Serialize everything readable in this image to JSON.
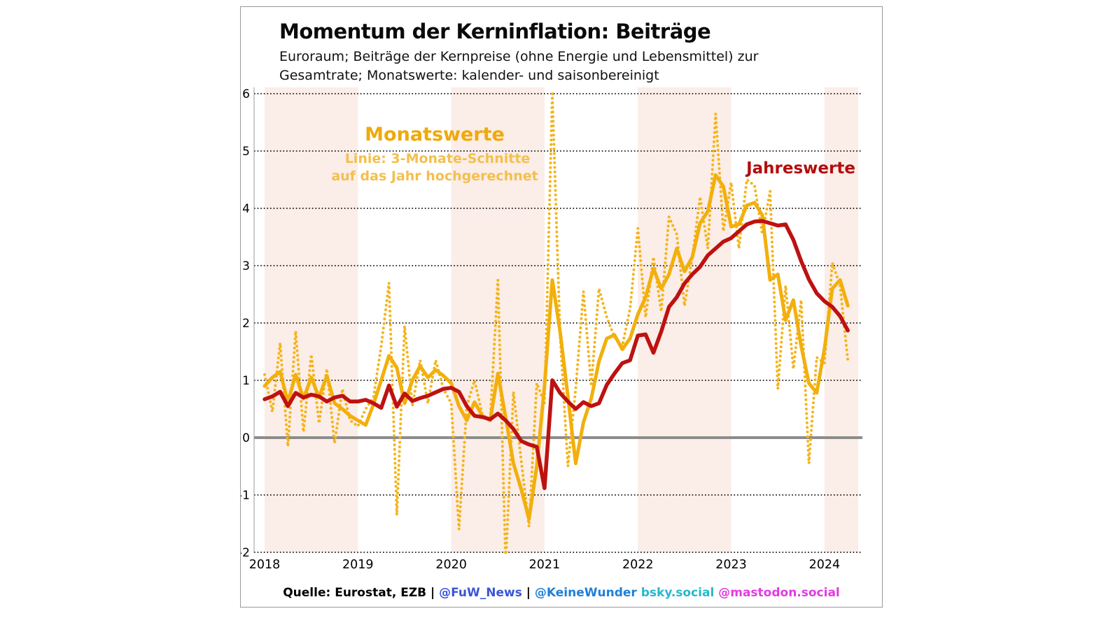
{
  "figure": {
    "title": "Momentum der Kerninflation: Beiträge",
    "subtitle_line1": "Euroraum; Beiträge der Kernpreise (ohne Energie und Lebensmittel) zur",
    "subtitle_line2": "Gesamtrate; Monatswerte: kalender- und saisonbereinigt"
  },
  "annotations": {
    "monthly_label": "Monatswerte",
    "monthly_sub_line1": "Linie: 3-Monate-Schnitte",
    "monthly_sub_line2": "auf das Jahr hochgerechnet",
    "annual_label": "Jahreswerte"
  },
  "footer": {
    "source": "Quelle: Eurostat, EZB",
    "sep1": " | ",
    "fuw": "@FuW_News",
    "sep2": " | ",
    "keinewunder": "@KeineWunder",
    "bsky": " bsky.social",
    "mastodon": " @mastodon.social"
  },
  "colors": {
    "amber": "#F2AF0D",
    "amber_dotted": "#F4B41A",
    "dark_red": "#BE1111",
    "band_pink": "#FBEDE7",
    "grid": "#1a1a1a",
    "zero_line": "#8c8c8c",
    "spine": "#999999",
    "fuw_blue": "#3B55D7",
    "keinewunder_blue": "#1E7FD8",
    "bsky_teal": "#25B8CC",
    "mastodon_magenta": "#E23BE2"
  },
  "chart_data": {
    "type": "line",
    "title": "Momentum der Kerninflation: Beiträge",
    "x_start": "2018-01",
    "x_end": "2024-04",
    "x_frequency": "monthly",
    "n_points": 76,
    "x_tick_labels": [
      "2018",
      "2019",
      "2020",
      "2021",
      "2022",
      "2023",
      "2024"
    ],
    "y_ticks": [
      6,
      5,
      4,
      3,
      2,
      1,
      0,
      -1,
      -2
    ],
    "ylim": [
      -2,
      6
    ],
    "grid": "horizontal dotted",
    "shaded_year_bands": [
      2018,
      2020,
      2022,
      2024
    ],
    "series": [
      {
        "name": "Monatswerte (annualisiert)",
        "style": "dotted",
        "color": "#F4B41A",
        "values": [
          1.1,
          0.45,
          1.65,
          -0.15,
          1.86,
          0.1,
          1.45,
          0.25,
          1.2,
          -0.1,
          0.85,
          0.3,
          0.2,
          0.5,
          0.7,
          1.6,
          2.7,
          -1.35,
          1.95,
          0.55,
          1.35,
          0.6,
          1.35,
          0.85,
          0.6,
          -1.6,
          0.55,
          1.0,
          0.4,
          0.3,
          2.75,
          -2.2,
          0.8,
          -0.4,
          -1.55,
          0.95,
          0.6,
          6.0,
          1.8,
          -0.5,
          0.85,
          2.55,
          0.9,
          2.6,
          2.1,
          1.75,
          1.6,
          2.25,
          3.65,
          2.1,
          3.15,
          2.2,
          3.85,
          3.55,
          2.3,
          3.15,
          4.2,
          3.3,
          5.65,
          3.6,
          4.45,
          3.3,
          4.5,
          4.4,
          3.55,
          4.3,
          0.85,
          2.65,
          1.2,
          2.4,
          -0.45,
          1.4,
          1.3,
          3.05,
          2.65,
          1.35
        ]
      },
      {
        "name": "3-Monate-Schnitte auf das Jahr hochgerechnet",
        "style": "solid",
        "color": "#F2AF0D",
        "values": [
          0.9,
          1.05,
          1.15,
          0.62,
          1.1,
          0.68,
          1.05,
          0.7,
          1.08,
          0.6,
          0.5,
          0.38,
          0.3,
          0.22,
          0.58,
          1.0,
          1.43,
          1.22,
          0.6,
          1.0,
          1.25,
          1.05,
          1.18,
          1.08,
          0.95,
          0.55,
          0.3,
          0.62,
          0.38,
          0.3,
          1.12,
          0.35,
          -0.45,
          -0.9,
          -1.42,
          -0.5,
          0.9,
          2.75,
          1.85,
          0.72,
          -0.45,
          0.27,
          0.68,
          1.33,
          1.73,
          1.79,
          1.54,
          1.73,
          2.15,
          2.45,
          2.95,
          2.6,
          2.85,
          3.3,
          2.9,
          3.15,
          3.74,
          3.95,
          4.58,
          4.38,
          3.68,
          3.72,
          4.05,
          4.1,
          3.88,
          2.75,
          2.85,
          2.05,
          2.4,
          1.6,
          0.95,
          0.78,
          1.55,
          2.6,
          2.75,
          2.3
        ]
      },
      {
        "name": "Jahreswerte",
        "style": "solid",
        "color": "#BE1111",
        "values": [
          0.67,
          0.72,
          0.8,
          0.55,
          0.78,
          0.7,
          0.75,
          0.72,
          0.63,
          0.7,
          0.73,
          0.63,
          0.63,
          0.66,
          0.6,
          0.52,
          0.91,
          0.54,
          0.77,
          0.64,
          0.69,
          0.73,
          0.79,
          0.85,
          0.87,
          0.8,
          0.55,
          0.38,
          0.36,
          0.32,
          0.42,
          0.3,
          0.15,
          -0.06,
          -0.12,
          -0.16,
          -0.88,
          1.0,
          0.78,
          0.63,
          0.5,
          0.62,
          0.55,
          0.6,
          0.92,
          1.12,
          1.3,
          1.35,
          1.78,
          1.8,
          1.48,
          1.85,
          2.28,
          2.45,
          2.69,
          2.85,
          2.98,
          3.18,
          3.3,
          3.42,
          3.48,
          3.6,
          3.72,
          3.77,
          3.78,
          3.74,
          3.7,
          3.72,
          3.45,
          3.08,
          2.76,
          2.52,
          2.38,
          2.28,
          2.12,
          1.87
        ]
      }
    ]
  }
}
